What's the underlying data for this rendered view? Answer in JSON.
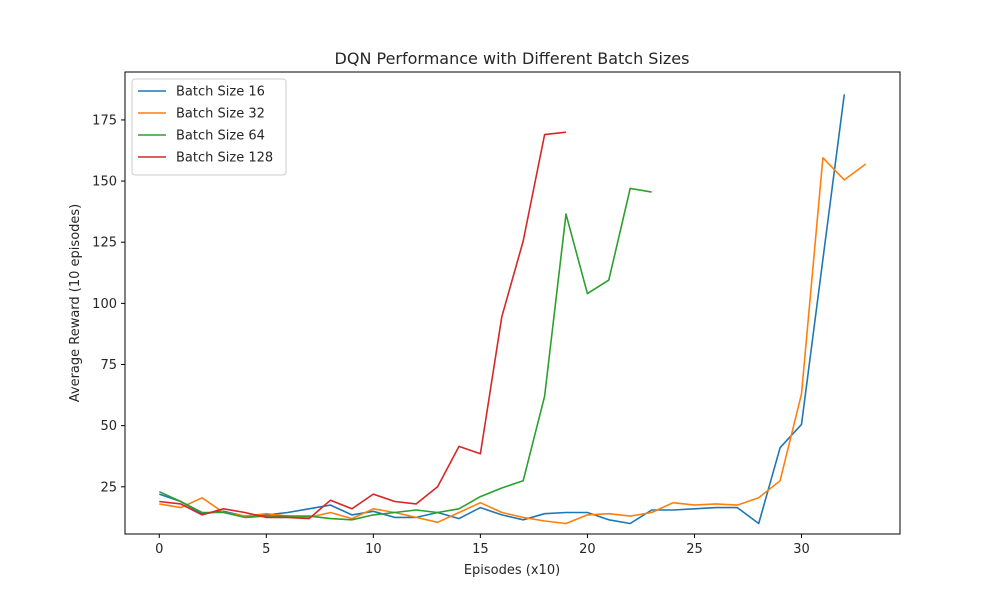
{
  "chart_data": {
    "type": "line",
    "title": "DQN Performance with Different Batch Sizes",
    "xlabel": "Episodes (x10)",
    "ylabel": "Average Reward (10 episodes)",
    "xlim": [
      -1.6,
      34.6
    ],
    "ylim": [
      5.7,
      194.6
    ],
    "xticks": [
      0,
      5,
      10,
      15,
      20,
      25,
      30
    ],
    "yticks": [
      25,
      50,
      75,
      100,
      125,
      150,
      175
    ],
    "grid": false,
    "legend_position": "top-left",
    "series": [
      {
        "name": "Batch Size 16",
        "color": "#1f77b4",
        "x": [
          0,
          1,
          2,
          3,
          4,
          5,
          6,
          7,
          8,
          9,
          10,
          11,
          12,
          13,
          14,
          15,
          16,
          17,
          18,
          19,
          20,
          21,
          22,
          23,
          24,
          25,
          26,
          27,
          28,
          29,
          30,
          31,
          32
        ],
        "values": [
          22.0,
          19.0,
          14.0,
          15.0,
          13.0,
          13.5,
          14.5,
          16.0,
          17.5,
          13.5,
          15.0,
          12.5,
          12.5,
          14.5,
          12.0,
          16.5,
          13.5,
          11.5,
          14.0,
          14.5,
          14.5,
          11.5,
          10.0,
          15.5,
          15.5,
          16.0,
          16.5,
          16.5,
          10.0,
          41.0,
          50.5,
          118.0,
          185.5
        ]
      },
      {
        "name": "Batch Size 32",
        "color": "#ff7f0e",
        "x": [
          0,
          1,
          2,
          3,
          4,
          5,
          6,
          7,
          8,
          9,
          10,
          11,
          12,
          13,
          14,
          15,
          16,
          17,
          18,
          19,
          20,
          21,
          22,
          23,
          24,
          25,
          26,
          27,
          28,
          29,
          30,
          31,
          32,
          33
        ],
        "values": [
          18.0,
          16.5,
          20.5,
          14.5,
          13.0,
          14.0,
          13.0,
          12.5,
          14.5,
          12.0,
          16.0,
          14.5,
          12.5,
          10.5,
          14.5,
          18.5,
          14.5,
          12.5,
          11.0,
          10.0,
          13.5,
          14.0,
          13.0,
          14.5,
          18.5,
          17.5,
          18.0,
          17.5,
          20.5,
          27.5,
          63.0,
          159.5,
          150.5,
          157.0
        ]
      },
      {
        "name": "Batch Size 64",
        "color": "#2ca02c",
        "x": [
          0,
          1,
          2,
          3,
          4,
          5,
          6,
          7,
          8,
          9,
          10,
          11,
          12,
          13,
          14,
          15,
          16,
          17,
          18,
          19,
          20,
          21,
          22,
          23
        ],
        "values": [
          23.0,
          19.0,
          14.5,
          14.5,
          12.5,
          13.0,
          13.0,
          13.0,
          12.0,
          11.5,
          13.5,
          14.5,
          15.5,
          14.5,
          16.0,
          21.0,
          24.5,
          27.5,
          62.0,
          136.5,
          104.0,
          109.5,
          147.0,
          145.5
        ]
      },
      {
        "name": "Batch Size 128",
        "color": "#d62728",
        "x": [
          0,
          1,
          2,
          3,
          4,
          5,
          6,
          7,
          8,
          9,
          10,
          11,
          12,
          13,
          14,
          15,
          16,
          17,
          18,
          19
        ],
        "values": [
          19.0,
          18.0,
          13.5,
          16.0,
          14.5,
          12.5,
          12.5,
          12.0,
          19.5,
          16.0,
          22.0,
          19.0,
          18.0,
          25.0,
          41.5,
          38.5,
          94.5,
          125.5,
          169.0,
          170.0
        ]
      }
    ]
  }
}
